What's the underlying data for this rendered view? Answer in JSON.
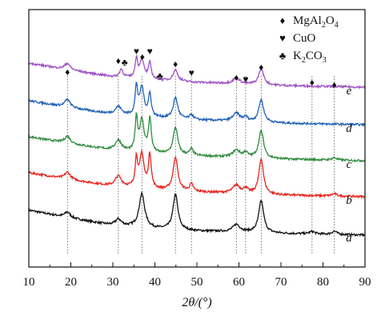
{
  "chart_data": {
    "type": "line",
    "title": "",
    "xlabel": "2θ/(°)",
    "ylabel": "",
    "xlim": [
      10,
      90
    ],
    "xticks": [
      10,
      20,
      30,
      40,
      50,
      60,
      70,
      80,
      90
    ],
    "grid": false,
    "legend": {
      "placement": "top-right",
      "entries": [
        {
          "symbol": "♦",
          "label": "MgAl2O4",
          "label_main": "MgAl",
          "sub1": "2",
          "mid": "O",
          "sub2": "4"
        },
        {
          "symbol": "♥",
          "label": "CuO",
          "label_main": "CuO",
          "sub1": "",
          "mid": "",
          "sub2": ""
        },
        {
          "symbol": "♣",
          "label": "K2CO3",
          "label_main": "K",
          "sub1": "2",
          "mid": "CO",
          "sub2": "3"
        }
      ]
    },
    "reference_lines_x": [
      19.2,
      31.3,
      36.9,
      44.9,
      48.7,
      59.4,
      61.6,
      65.3,
      77.4,
      82.7
    ],
    "series": [
      {
        "name": "a",
        "color": "#111111",
        "offset": 0,
        "baseline": [
          [
            10,
            33
          ],
          [
            20,
            23
          ],
          [
            30,
            14
          ],
          [
            40,
            10
          ],
          [
            50,
            7
          ],
          [
            60,
            6
          ],
          [
            70,
            4
          ],
          [
            80,
            3
          ],
          [
            90,
            2
          ]
        ],
        "peaks": [
          [
            19.2,
            7,
            0.8
          ],
          [
            31.3,
            8,
            0.9
          ],
          [
            36.9,
            42,
            0.8
          ],
          [
            44.9,
            44,
            0.7
          ],
          [
            59.4,
            9,
            1.0
          ],
          [
            65.3,
            40,
            0.7
          ],
          [
            77.4,
            3,
            0.8
          ],
          [
            82.7,
            4,
            0.7
          ]
        ]
      },
      {
        "name": "b",
        "color": "#e8251e",
        "offset": 47,
        "baseline": [
          [
            10,
            33
          ],
          [
            20,
            24
          ],
          [
            30,
            16
          ],
          [
            40,
            12
          ],
          [
            50,
            9
          ],
          [
            60,
            7
          ],
          [
            70,
            5
          ],
          [
            80,
            4
          ],
          [
            90,
            3
          ]
        ],
        "peaks": [
          [
            19.2,
            9,
            0.8
          ],
          [
            31.3,
            13,
            0.9
          ],
          [
            35.6,
            35,
            0.35
          ],
          [
            36.9,
            42,
            0.6
          ],
          [
            38.8,
            42,
            0.4
          ],
          [
            44.9,
            42,
            0.65
          ],
          [
            48.7,
            9,
            0.5
          ],
          [
            59.4,
            10,
            1.0
          ],
          [
            61.6,
            6,
            0.6
          ],
          [
            65.3,
            44,
            0.65
          ],
          [
            82.7,
            3,
            0.7
          ]
        ]
      },
      {
        "name": "c",
        "color": "#2e8b3d",
        "offset": 92,
        "baseline": [
          [
            10,
            33
          ],
          [
            20,
            24
          ],
          [
            30,
            16
          ],
          [
            40,
            12
          ],
          [
            50,
            9
          ],
          [
            60,
            7
          ],
          [
            70,
            5
          ],
          [
            80,
            4
          ],
          [
            90,
            3
          ]
        ],
        "peaks": [
          [
            19.2,
            9,
            0.8
          ],
          [
            31.3,
            13,
            0.9
          ],
          [
            35.6,
            40,
            0.35
          ],
          [
            36.9,
            40,
            0.6
          ],
          [
            38.8,
            42,
            0.4
          ],
          [
            44.9,
            34,
            0.65
          ],
          [
            48.7,
            8,
            0.5
          ],
          [
            59.4,
            9,
            1.0
          ],
          [
            61.6,
            6,
            0.6
          ],
          [
            65.3,
            34,
            0.7
          ],
          [
            82.7,
            3,
            0.7
          ]
        ]
      },
      {
        "name": "d",
        "color": "#2162b7",
        "offset": 137,
        "baseline": [
          [
            10,
            33
          ],
          [
            20,
            24
          ],
          [
            30,
            16
          ],
          [
            40,
            12
          ],
          [
            50,
            9
          ],
          [
            60,
            7
          ],
          [
            70,
            5
          ],
          [
            80,
            4
          ],
          [
            90,
            3
          ]
        ],
        "peaks": [
          [
            19.2,
            10,
            0.8
          ],
          [
            31.3,
            10,
            0.9
          ],
          [
            35.6,
            36,
            0.35
          ],
          [
            36.9,
            36,
            0.6
          ],
          [
            38.8,
            28,
            0.4
          ],
          [
            44.9,
            26,
            0.65
          ],
          [
            48.7,
            6,
            0.5
          ],
          [
            59.4,
            10,
            1.0
          ],
          [
            61.6,
            5,
            0.6
          ],
          [
            65.3,
            28,
            0.7
          ]
        ]
      },
      {
        "name": "e",
        "color": "#9f52c2",
        "offset": 184,
        "baseline": [
          [
            10,
            33
          ],
          [
            20,
            24
          ],
          [
            30,
            16
          ],
          [
            40,
            12
          ],
          [
            50,
            9
          ],
          [
            60,
            7
          ],
          [
            70,
            5
          ],
          [
            80,
            4
          ],
          [
            90,
            3
          ]
        ],
        "peaks": [
          [
            19.2,
            8,
            0.8
          ],
          [
            32.0,
            10,
            0.5
          ],
          [
            35.6,
            24,
            0.35
          ],
          [
            36.9,
            24,
            0.6
          ],
          [
            38.8,
            20,
            0.4
          ],
          [
            44.9,
            14,
            0.65
          ],
          [
            59.4,
            7,
            1.0
          ],
          [
            65.3,
            20,
            0.7
          ]
        ]
      }
    ],
    "peak_markers": [
      {
        "symbol": "♦",
        "x": 19.2
      },
      {
        "symbol": "♦",
        "x": 31.3
      },
      {
        "symbol": "♣",
        "x": 32.8
      },
      {
        "symbol": "♥",
        "x": 35.6
      },
      {
        "symbol": "♦",
        "x": 37.0
      },
      {
        "symbol": "♥",
        "x": 38.8
      },
      {
        "symbol": "♣",
        "x": 41.2
      },
      {
        "symbol": "♦",
        "x": 44.9
      },
      {
        "symbol": "♥",
        "x": 48.7
      },
      {
        "symbol": "♦",
        "x": 59.4
      },
      {
        "symbol": "♥",
        "x": 61.6
      },
      {
        "symbol": "♦",
        "x": 65.3
      },
      {
        "symbol": "♦",
        "x": 77.4
      },
      {
        "symbol": "♦",
        "x": 82.7
      }
    ]
  }
}
